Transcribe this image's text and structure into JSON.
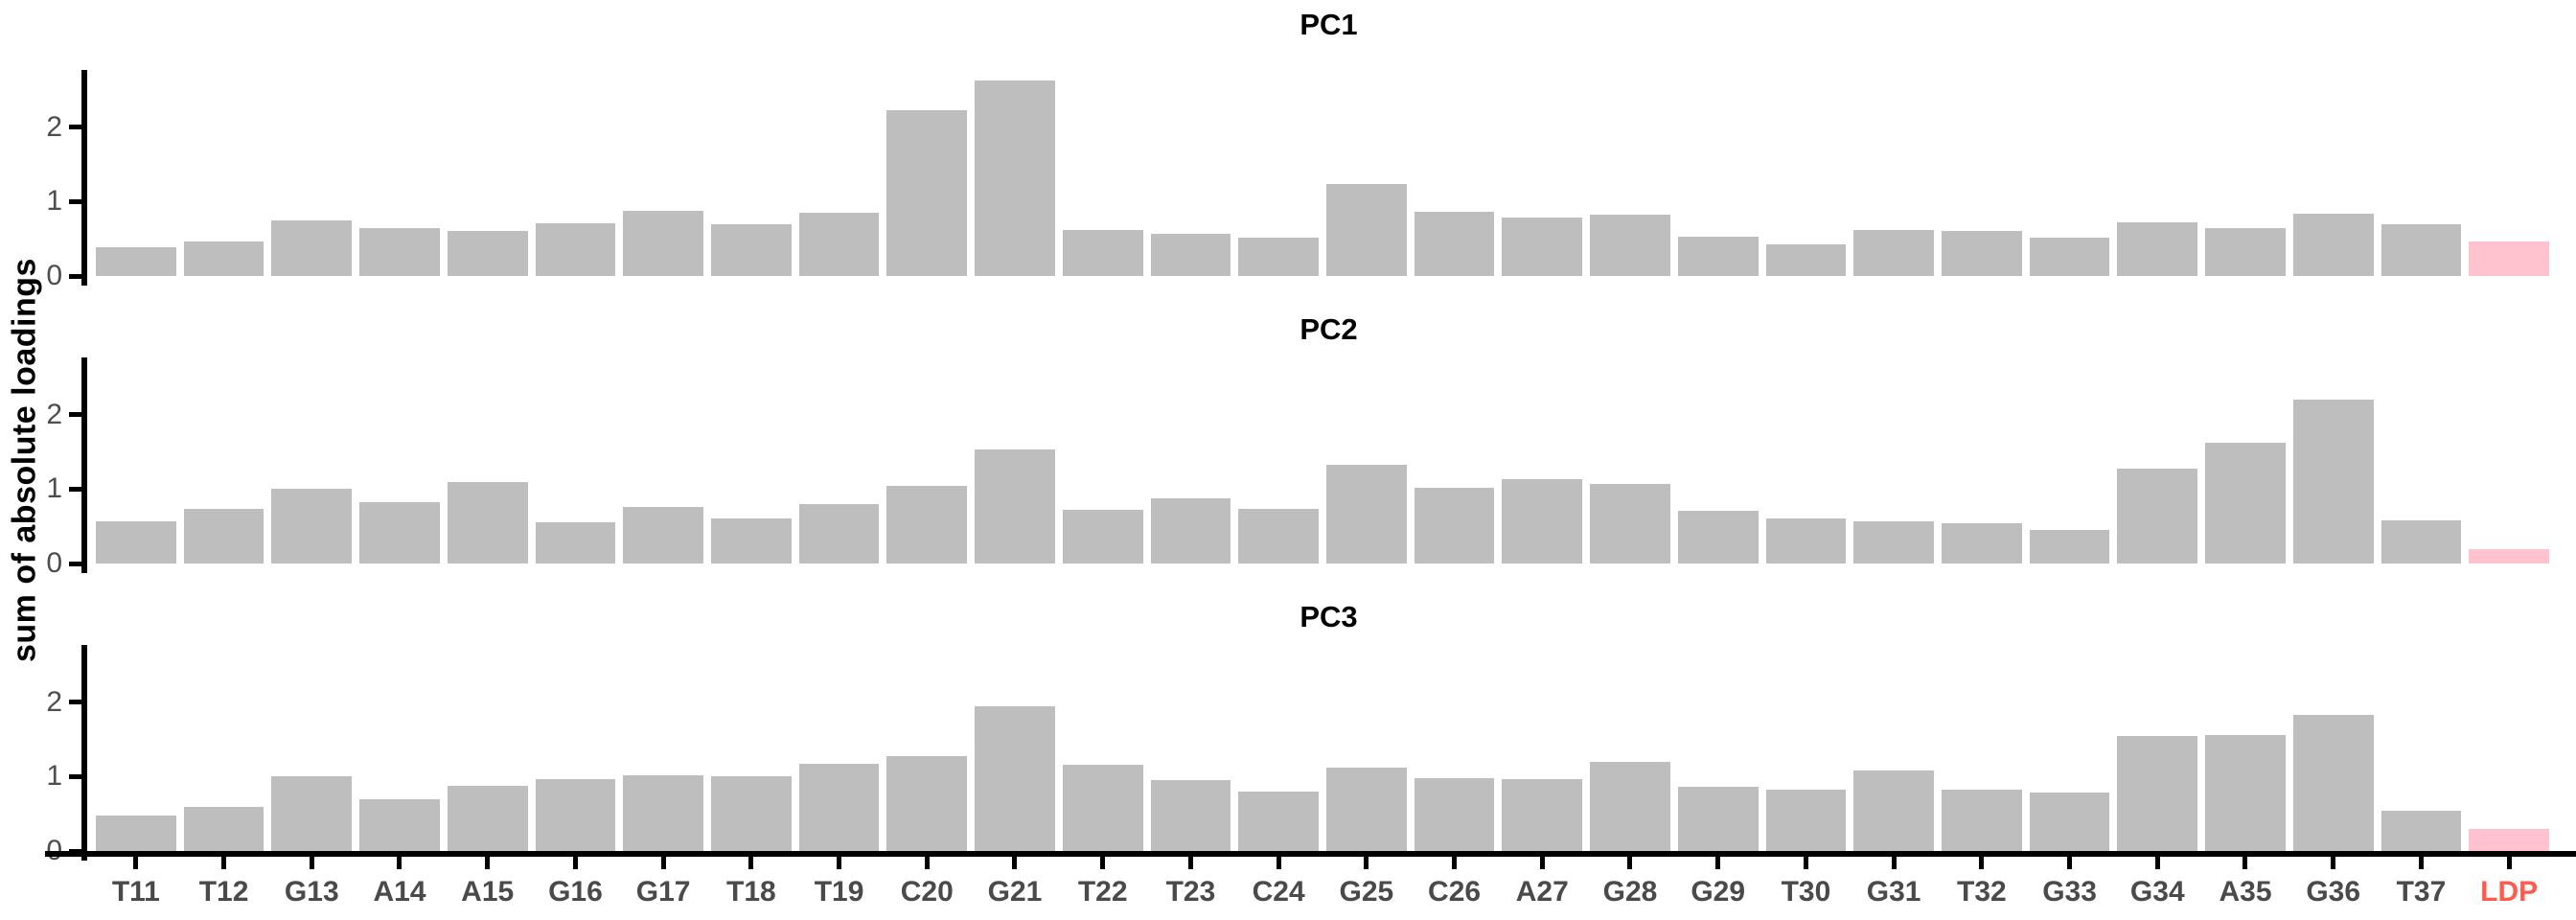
{
  "chart_data": {
    "type": "bar",
    "title": "",
    "ylabel": "sum of absolute loadings",
    "xlabel": "",
    "categories": [
      "T11",
      "T12",
      "G13",
      "A14",
      "A15",
      "G16",
      "G17",
      "T18",
      "T19",
      "C20",
      "G21",
      "T22",
      "T23",
      "C24",
      "G25",
      "C26",
      "A27",
      "G28",
      "G29",
      "T30",
      "G31",
      "T32",
      "G33",
      "G34",
      "A35",
      "G36",
      "T37",
      "LDP"
    ],
    "series": [
      {
        "name": "PC1",
        "values": [
          0.39,
          0.46,
          0.75,
          0.64,
          0.6,
          0.71,
          0.87,
          0.69,
          0.85,
          2.23,
          2.62,
          0.62,
          0.57,
          0.51,
          1.24,
          0.86,
          0.79,
          0.82,
          0.53,
          0.43,
          0.62,
          0.61,
          0.52,
          0.72,
          0.65,
          0.84,
          0.7,
          0.46
        ]
      },
      {
        "name": "PC2",
        "values": [
          0.57,
          0.73,
          1.01,
          0.82,
          1.09,
          0.56,
          0.76,
          0.61,
          0.8,
          1.04,
          1.53,
          0.72,
          0.87,
          0.73,
          1.32,
          1.02,
          1.13,
          1.07,
          0.71,
          0.6,
          0.57,
          0.54,
          0.45,
          1.27,
          1.62,
          2.2,
          0.58,
          0.2
        ]
      },
      {
        "name": "PC3",
        "values": [
          0.48,
          0.59,
          1.0,
          0.69,
          0.87,
          0.96,
          1.02,
          1.0,
          1.17,
          1.27,
          1.95,
          1.16,
          0.95,
          0.8,
          1.12,
          0.98,
          0.96,
          1.2,
          0.86,
          0.83,
          1.08,
          0.83,
          0.79,
          1.54,
          1.56,
          1.83,
          0.54,
          0.3
        ]
      }
    ],
    "yticks": [
      0,
      1,
      2
    ],
    "ylim": [
      0,
      2.77
    ],
    "grid": false,
    "legend": "none",
    "facet_layout": "3 stacked panels, shared x axis at bottom",
    "highlight_category": "LDP",
    "colors": {
      "bar_fill": "#BEBEBE",
      "highlight_bar_fill": "#FFC2CE",
      "axis_line": "#000000",
      "tick_text": "#4D4D4D",
      "x_label_text": "#4A4A4A",
      "highlight_label_text": "#FF5B4C",
      "title_text": "#000000"
    }
  }
}
